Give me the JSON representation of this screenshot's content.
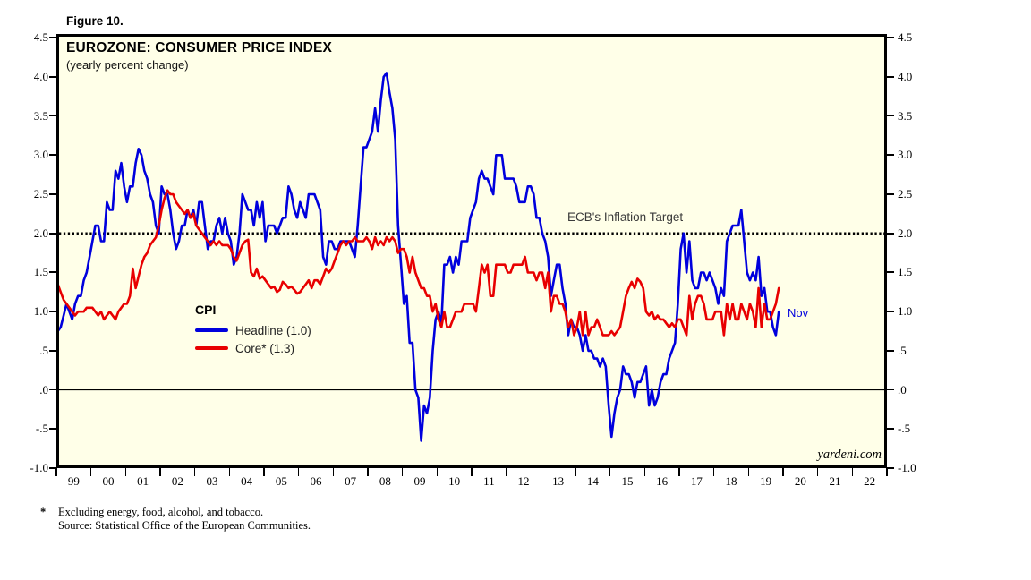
{
  "figure_label": "Figure 10.",
  "chart": {
    "title": "EUROZONE: CONSUMER PRICE INDEX",
    "subtitle": "(yearly percent change)",
    "target_label": "ECB's Inflation Target",
    "last_point_label": "Nov",
    "watermark": "yardeni.com",
    "legend": {
      "heading": "CPI",
      "items": [
        {
          "label": "Headline (1.0)",
          "color": "#0000DD"
        },
        {
          "label": "Core* (1.3)",
          "color": "#E80000"
        }
      ]
    },
    "colors": {
      "plot_background": "#FFFFE8",
      "headline_line": "#0000DD",
      "core_line": "#E80000",
      "target_line": "#000000",
      "frame": "#000000"
    }
  },
  "footnotes": {
    "asterisk": "*",
    "lines": [
      "Excluding energy, food, alcohol, and tobacco.",
      "Source: Statistical Office of the European Communities."
    ]
  },
  "chart_data": {
    "type": "line",
    "title": "EUROZONE: CONSUMER PRICE INDEX",
    "subtitle": "(yearly percent change)",
    "ylim": [
      -1.0,
      4.5
    ],
    "y_tick_values": [
      4.5,
      4.0,
      3.5,
      3.0,
      2.5,
      2.0,
      1.5,
      1.0,
      0.5,
      0.0,
      -0.5,
      -1.0
    ],
    "y_tick_labels": [
      "4.5",
      "4.0",
      "3.5",
      "3.0",
      "2.5",
      "2.0",
      "1.5",
      "1.0",
      ".5",
      ".0",
      "-.5",
      "-1.0"
    ],
    "x_tick_labels": [
      "99",
      "00",
      "01",
      "02",
      "03",
      "04",
      "05",
      "06",
      "07",
      "08",
      "09",
      "10",
      "11",
      "12",
      "13",
      "14",
      "15",
      "16",
      "17",
      "18",
      "19",
      "20",
      "21",
      "22"
    ],
    "x_axis_years": [
      1999,
      2022
    ],
    "x_monthly_start": "1999-01",
    "x_monthly_end": "2019-11",
    "grid": "off",
    "reference_lines": [
      {
        "name": "ECB inflation target",
        "value": 2.0,
        "style": "dotted"
      },
      {
        "name": "zero line",
        "value": 0.0,
        "style": "solid"
      }
    ],
    "legend_position": "inside-left-middle",
    "series": [
      {
        "name": "Headline",
        "latest_label": "Nov",
        "latest_value": 1.0,
        "color": "#0000DD",
        "values": [
          0.75,
          0.8,
          0.95,
          1.1,
          1.0,
          0.9,
          1.1,
          1.2,
          1.2,
          1.4,
          1.5,
          1.7,
          1.9,
          2.1,
          2.1,
          1.9,
          1.9,
          2.4,
          2.3,
          2.3,
          2.8,
          2.7,
          2.9,
          2.6,
          2.4,
          2.6,
          2.6,
          2.9,
          3.08,
          3.0,
          2.8,
          2.7,
          2.5,
          2.4,
          2.1,
          2.0,
          2.6,
          2.5,
          2.5,
          2.3,
          2.0,
          1.8,
          1.9,
          2.1,
          2.1,
          2.3,
          2.2,
          2.3,
          2.1,
          2.4,
          2.4,
          2.1,
          1.8,
          1.9,
          1.9,
          2.1,
          2.2,
          2.0,
          2.2,
          2.0,
          1.9,
          1.6,
          1.7,
          2.0,
          2.5,
          2.4,
          2.3,
          2.3,
          2.1,
          2.4,
          2.2,
          2.4,
          1.9,
          2.1,
          2.1,
          2.1,
          2.0,
          2.1,
          2.2,
          2.2,
          2.6,
          2.5,
          2.3,
          2.2,
          2.4,
          2.3,
          2.2,
          2.5,
          2.5,
          2.5,
          2.4,
          2.3,
          1.7,
          1.6,
          1.9,
          1.9,
          1.8,
          1.8,
          1.9,
          1.9,
          1.9,
          1.9,
          1.8,
          1.7,
          2.1,
          2.6,
          3.1,
          3.1,
          3.2,
          3.3,
          3.6,
          3.3,
          3.7,
          4.0,
          4.05,
          3.8,
          3.6,
          3.2,
          2.1,
          1.6,
          1.1,
          1.2,
          0.6,
          0.6,
          0.0,
          -0.1,
          -0.65,
          -0.2,
          -0.3,
          -0.1,
          0.5,
          0.9,
          1.0,
          0.85,
          1.6,
          1.6,
          1.7,
          1.5,
          1.7,
          1.6,
          1.9,
          1.9,
          1.9,
          2.2,
          2.3,
          2.4,
          2.7,
          2.8,
          2.7,
          2.7,
          2.6,
          2.5,
          3.0,
          3.0,
          3.0,
          2.7,
          2.7,
          2.7,
          2.7,
          2.6,
          2.4,
          2.4,
          2.4,
          2.6,
          2.6,
          2.5,
          2.2,
          2.2,
          2.0,
          1.9,
          1.7,
          1.2,
          1.4,
          1.6,
          1.6,
          1.3,
          1.1,
          0.7,
          0.9,
          0.8,
          0.8,
          0.7,
          0.5,
          0.7,
          0.5,
          0.5,
          0.4,
          0.4,
          0.3,
          0.4,
          0.3,
          -0.2,
          -0.6,
          -0.3,
          -0.1,
          0.0,
          0.3,
          0.2,
          0.2,
          0.1,
          -0.1,
          0.1,
          0.1,
          0.2,
          0.3,
          -0.2,
          0.0,
          -0.2,
          -0.1,
          0.1,
          0.2,
          0.2,
          0.4,
          0.5,
          0.6,
          1.1,
          1.8,
          2.0,
          1.5,
          1.9,
          1.4,
          1.3,
          1.3,
          1.5,
          1.5,
          1.4,
          1.5,
          1.4,
          1.3,
          1.1,
          1.3,
          1.2,
          1.9,
          2.0,
          2.1,
          2.1,
          2.1,
          2.3,
          1.9,
          1.5,
          1.4,
          1.5,
          1.4,
          1.7,
          1.2,
          1.3,
          1.0,
          1.0,
          0.8,
          0.7,
          1.0
        ]
      },
      {
        "name": "Core",
        "latest_label": "Nov",
        "latest_value": 1.3,
        "color": "#E80000",
        "values": [
          1.35,
          1.25,
          1.15,
          1.1,
          1.05,
          1.0,
          0.95,
          1.0,
          1.0,
          1.0,
          1.05,
          1.05,
          1.05,
          1.0,
          0.95,
          1.0,
          0.9,
          0.95,
          1.0,
          0.95,
          0.9,
          1.0,
          1.05,
          1.1,
          1.1,
          1.2,
          1.55,
          1.3,
          1.45,
          1.6,
          1.7,
          1.75,
          1.85,
          1.9,
          1.95,
          2.1,
          2.3,
          2.45,
          2.55,
          2.5,
          2.5,
          2.4,
          2.35,
          2.3,
          2.25,
          2.3,
          2.2,
          2.25,
          2.1,
          2.05,
          2.0,
          1.95,
          1.9,
          1.85,
          1.9,
          1.85,
          1.9,
          1.85,
          1.85,
          1.85,
          1.8,
          1.7,
          1.65,
          1.75,
          1.85,
          1.9,
          1.92,
          1.5,
          1.45,
          1.55,
          1.42,
          1.45,
          1.4,
          1.35,
          1.3,
          1.32,
          1.25,
          1.28,
          1.38,
          1.35,
          1.3,
          1.32,
          1.28,
          1.23,
          1.25,
          1.3,
          1.35,
          1.4,
          1.3,
          1.4,
          1.4,
          1.35,
          1.45,
          1.55,
          1.5,
          1.55,
          1.65,
          1.75,
          1.85,
          1.9,
          1.85,
          1.9,
          1.9,
          1.95,
          1.9,
          1.9,
          1.9,
          1.95,
          1.9,
          1.8,
          1.95,
          1.85,
          1.9,
          1.85,
          1.95,
          1.9,
          1.95,
          1.9,
          1.75,
          1.8,
          1.8,
          1.7,
          1.5,
          1.7,
          1.5,
          1.4,
          1.3,
          1.3,
          1.2,
          1.2,
          1.0,
          1.1,
          0.9,
          0.8,
          1.0,
          0.8,
          0.8,
          0.9,
          1.0,
          1.0,
          1.0,
          1.1,
          1.1,
          1.1,
          1.1,
          1.0,
          1.3,
          1.6,
          1.5,
          1.6,
          1.2,
          1.2,
          1.6,
          1.6,
          1.6,
          1.6,
          1.5,
          1.5,
          1.6,
          1.6,
          1.6,
          1.6,
          1.7,
          1.5,
          1.5,
          1.5,
          1.4,
          1.5,
          1.5,
          1.3,
          1.5,
          1.0,
          1.2,
          1.2,
          1.1,
          1.1,
          1.0,
          0.8,
          0.9,
          0.7,
          0.8,
          1.0,
          0.7,
          1.0,
          0.7,
          0.8,
          0.8,
          0.9,
          0.8,
          0.7,
          0.7,
          0.7,
          0.75,
          0.7,
          0.75,
          0.8,
          1.0,
          1.2,
          1.3,
          1.38,
          1.3,
          1.42,
          1.38,
          1.3,
          1.0,
          0.95,
          1.0,
          0.9,
          0.95,
          0.9,
          0.9,
          0.85,
          0.8,
          0.85,
          0.8,
          0.9,
          0.9,
          0.8,
          0.7,
          1.2,
          0.9,
          1.1,
          1.2,
          1.2,
          1.1,
          0.9,
          0.9,
          0.9,
          1.0,
          1.0,
          1.0,
          0.7,
          1.1,
          0.9,
          1.1,
          0.9,
          0.9,
          1.1,
          1.0,
          0.9,
          1.1,
          1.0,
          0.8,
          1.3,
          0.8,
          1.1,
          0.9,
          0.9,
          1.0,
          1.1,
          1.3
        ]
      }
    ]
  }
}
